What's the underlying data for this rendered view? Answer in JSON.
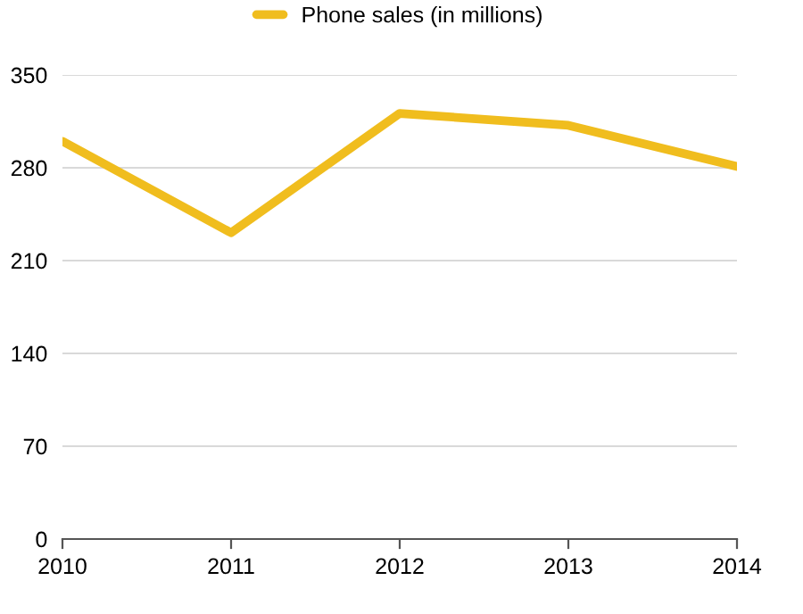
{
  "chart_data": {
    "type": "line",
    "x": [
      2010,
      2011,
      2012,
      2013,
      2014
    ],
    "series": [
      {
        "name": "Phone sales (in millions)",
        "color": "#f0bd1e",
        "values": [
          300,
          231,
          321,
          312,
          281
        ]
      }
    ],
    "xlim": [
      2010,
      2014
    ],
    "xticks": [
      2010,
      2011,
      2012,
      2013,
      2014
    ],
    "ylim": [
      0,
      350
    ],
    "yticks": [
      0,
      70,
      140,
      210,
      280,
      350
    ],
    "grid": "y",
    "legend": "top",
    "marker": "none",
    "line_style": "solid"
  }
}
